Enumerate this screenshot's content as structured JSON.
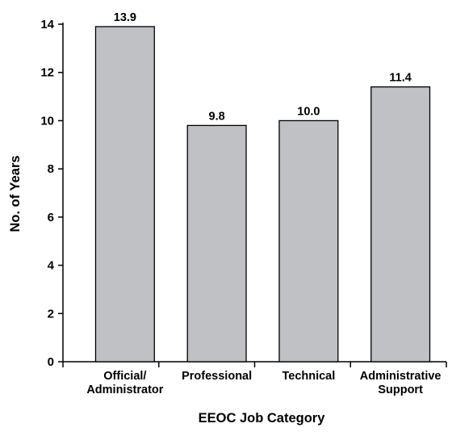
{
  "chart_data": {
    "type": "bar",
    "categories": [
      [
        "Official/",
        "Administrator"
      ],
      [
        "Professional"
      ],
      [
        "Technical"
      ],
      [
        "Administrative",
        "Support"
      ]
    ],
    "values": [
      13.9,
      9.8,
      10.0,
      11.4
    ],
    "value_labels": [
      "13.9",
      "9.8",
      "10.0",
      "11.4"
    ],
    "title": "",
    "xlabel": "EEOC Job Category",
    "ylabel": "No. of Years",
    "ylim": [
      0,
      14
    ],
    "yticks": [
      0,
      2,
      4,
      6,
      8,
      10,
      12,
      14
    ],
    "grid": false,
    "bar_color": "#c0c1c4",
    "bar_edge_color": "#000000"
  }
}
